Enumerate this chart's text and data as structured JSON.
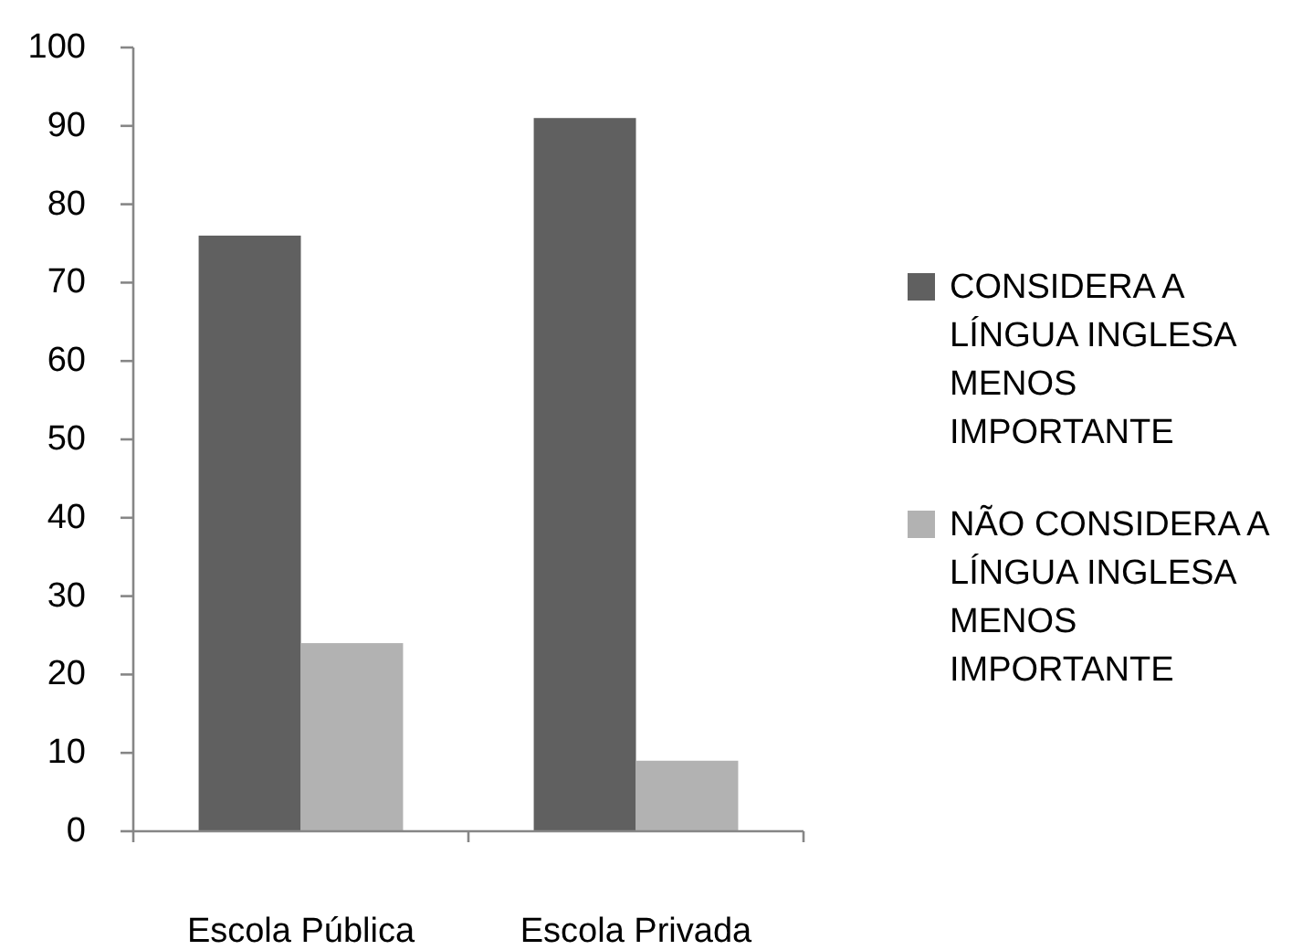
{
  "chart_data": {
    "type": "bar",
    "categories": [
      "Escola Pública",
      "Escola Privada"
    ],
    "series": [
      {
        "name": "CONSIDERA A LÍNGUA INGLESA MENOS IMPORTANTE",
        "color": "#606060",
        "values": [
          76,
          91
        ]
      },
      {
        "name": "NÃO CONSIDERA A LÍNGUA INGLESA MENOS IMPORTANTE",
        "color": "#b2b2b2",
        "values": [
          24,
          9
        ]
      }
    ],
    "ylim": [
      0,
      100
    ],
    "yticks": [
      0,
      10,
      20,
      30,
      40,
      50,
      60,
      70,
      80,
      90,
      100
    ],
    "legend": "right"
  }
}
